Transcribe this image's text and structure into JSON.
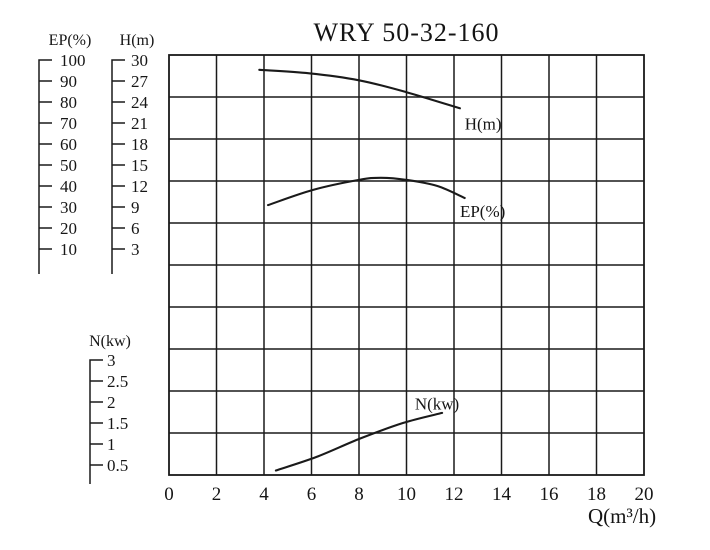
{
  "title": "WRY 50-32-160",
  "chart_data": {
    "type": "line",
    "title": "WRY 50-32-160",
    "background": "#ffffff",
    "line_color": "#1a1a1a",
    "grid": {
      "cols": 10,
      "rows": 10,
      "visible": true
    },
    "x_axis": {
      "label": "Q(m³/h)",
      "min": 0,
      "max": 20,
      "ticks": [
        0,
        2,
        4,
        6,
        8,
        10,
        12,
        14,
        16,
        18,
        20
      ]
    },
    "left_rulers": [
      {
        "id": "EP",
        "label": "EP(%)",
        "ticks": [
          100,
          90,
          80,
          70,
          60,
          50,
          40,
          30,
          20,
          10
        ]
      },
      {
        "id": "H",
        "label": "H(m)",
        "ticks": [
          30,
          27,
          24,
          21,
          18,
          15,
          12,
          9,
          6,
          3
        ]
      },
      {
        "id": "N",
        "label": "N(kw)",
        "ticks": [
          3,
          2.5,
          2,
          1.5,
          1,
          0.5
        ]
      }
    ],
    "series": [
      {
        "name": "H(m)",
        "scale": "H",
        "points": [
          [
            3.8,
            28.6
          ],
          [
            5.9,
            28.1
          ],
          [
            8.0,
            27.1
          ],
          [
            10.0,
            25.4
          ],
          [
            12.25,
            23.1
          ]
        ],
        "label": "H(m)",
        "label_at": [
          12.45,
          20.1
        ]
      },
      {
        "name": "EP(%)",
        "scale": "EP",
        "points": [
          [
            4.17,
            30.9
          ],
          [
            6.05,
            38.1
          ],
          [
            8.0,
            42.9
          ],
          [
            8.9,
            43.9
          ],
          [
            10.0,
            42.9
          ],
          [
            11.3,
            40.0
          ],
          [
            12.45,
            34.3
          ]
        ],
        "label": "EP(%)",
        "label_at": [
          12.25,
          25.2
        ]
      },
      {
        "name": "N(kw)",
        "scale": "N",
        "points": [
          [
            4.5,
            0.37
          ],
          [
            6.2,
            0.69
          ],
          [
            8.05,
            1.13
          ],
          [
            9.85,
            1.5
          ],
          [
            11.5,
            1.74
          ]
        ],
        "label": "N(kw)",
        "label_at": [
          10.35,
          1.82
        ]
      }
    ]
  }
}
